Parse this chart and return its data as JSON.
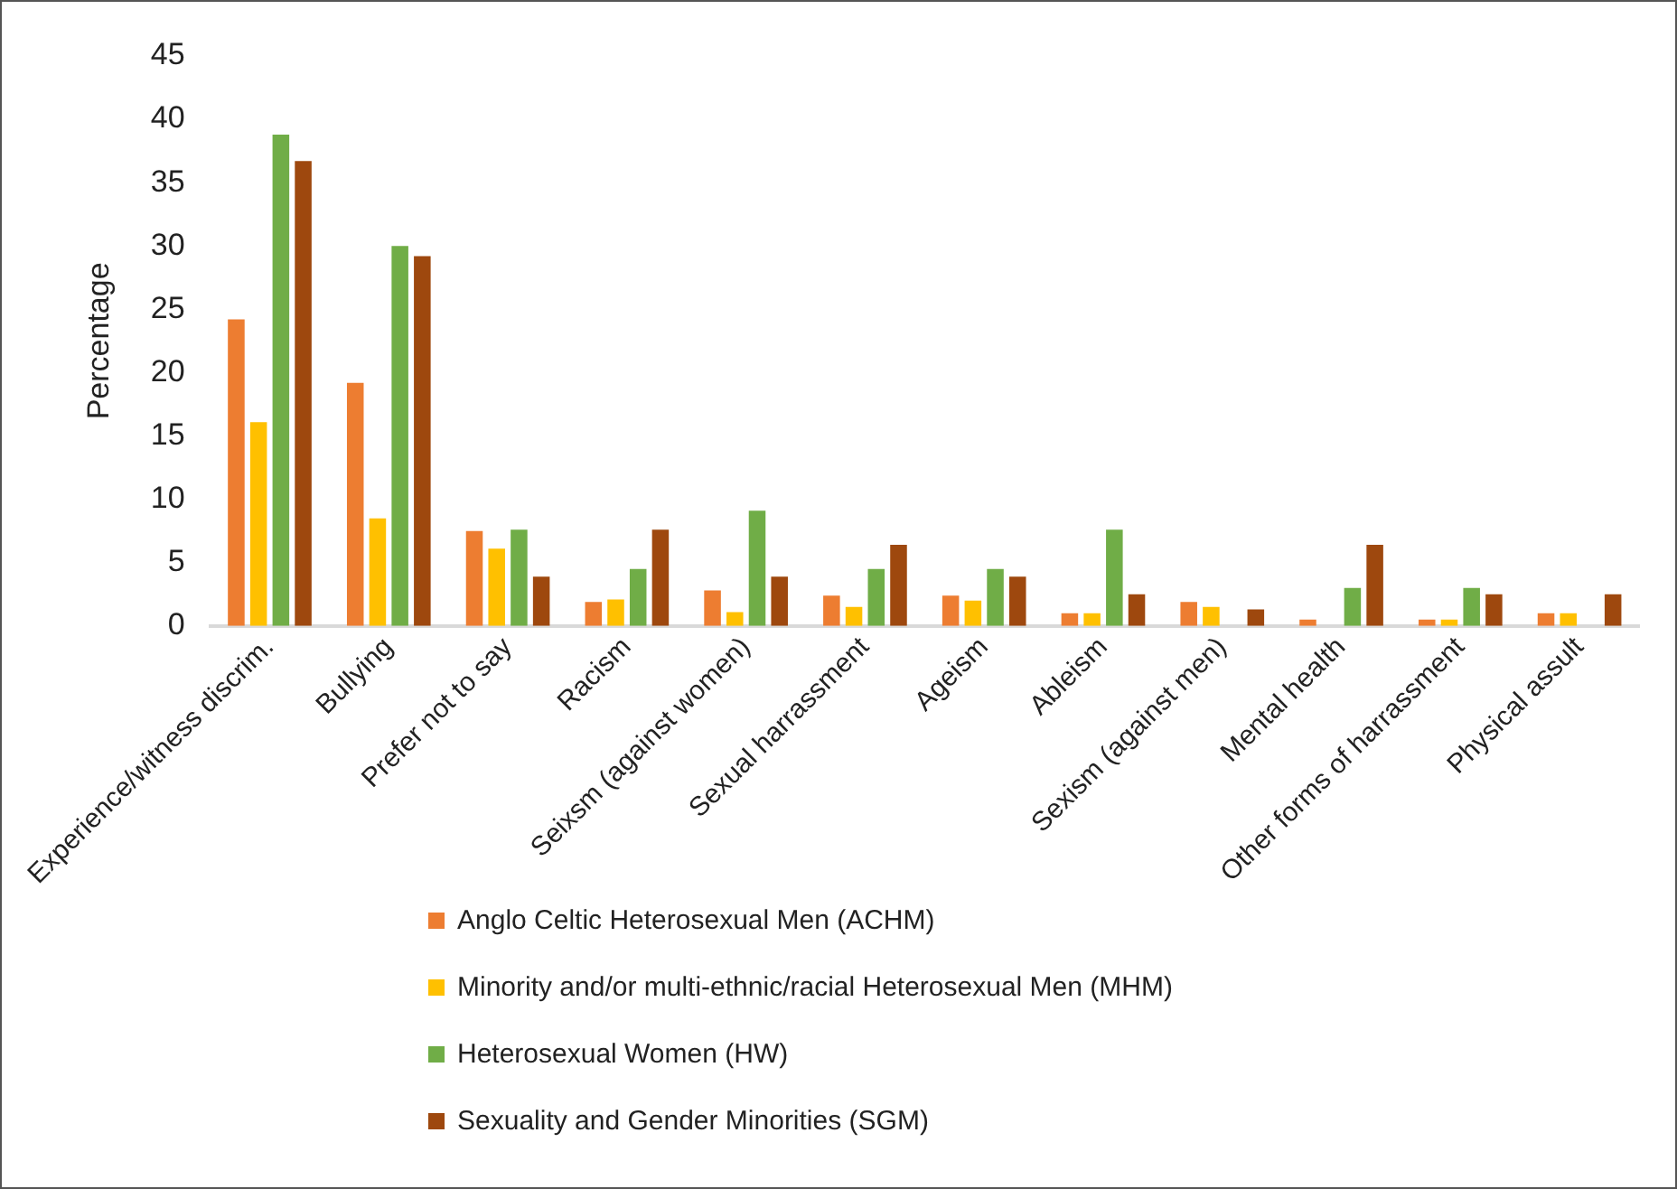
{
  "chart_data": {
    "type": "bar",
    "ylabel": "Percentage",
    "categories": [
      "Experience/witness discrim.",
      "Bullying",
      "Prefer not to say",
      "Racism",
      "Seixsm (against women)",
      "Sexual harrassment",
      "Ageism",
      "Ableism",
      "Sexism (against men)",
      "Mental health",
      "Other forms of harrassment",
      "Physical assult"
    ],
    "series": [
      {
        "name": "Anglo Celtic Heterosexual Men (ACHM)",
        "color": "#ed7d31",
        "values": [
          24.2,
          19.2,
          7.5,
          1.9,
          2.8,
          2.4,
          2.4,
          1.0,
          1.9,
          0.5,
          0.5,
          1.0
        ]
      },
      {
        "name": "Minority and/or multi-ethnic/racial Heterosexual Men (MHM)",
        "color": "#ffc000",
        "values": [
          16.1,
          8.5,
          6.1,
          2.1,
          1.1,
          1.5,
          2.0,
          1.0,
          1.5,
          0,
          0.5,
          1.0
        ]
      },
      {
        "name": "Heterosexual Women (HW)",
        "color": "#70ad47",
        "values": [
          38.8,
          30,
          7.6,
          4.5,
          9.1,
          4.5,
          4.5,
          7.6,
          0,
          3.0,
          3.0,
          0
        ]
      },
      {
        "name": "Sexuality and Gender Minorities (SGM)",
        "color": "#9e480e",
        "values": [
          36.7,
          29.2,
          3.9,
          7.6,
          3.9,
          6.4,
          3.9,
          2.5,
          1.3,
          6.4,
          2.5,
          2.5
        ]
      }
    ],
    "ylim": [
      0,
      45
    ],
    "yticks": [
      0,
      5,
      10,
      15,
      20,
      25,
      30,
      35,
      40,
      45
    ],
    "grid": false,
    "legend": "bottom"
  }
}
